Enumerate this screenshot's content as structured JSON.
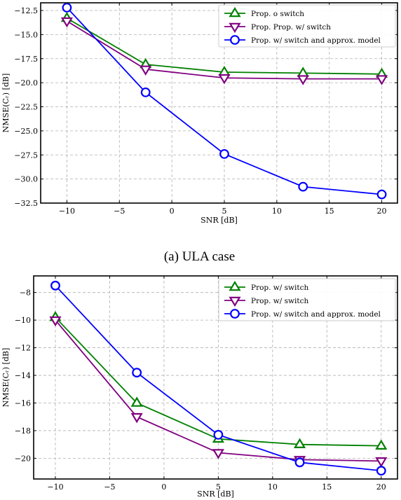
{
  "chart_data": [
    {
      "type": "line",
      "caption": "(a) ULA case",
      "xlabel": "SNR [dB]",
      "ylabel": "NMSE(Cᵣ) [dB]",
      "xlim": [
        -12.5,
        21.5
      ],
      "ylim": [
        -32.5,
        -11.7
      ],
      "xticks": [
        -10,
        -5,
        0,
        5,
        10,
        15,
        20
      ],
      "xtick_labels": [
        "−10",
        "−5",
        "0",
        "5",
        "10",
        "15",
        "20"
      ],
      "yticks": [
        -12.5,
        -15.0,
        -17.5,
        -20.0,
        -22.5,
        -25.0,
        -27.5,
        -30.0,
        -32.5
      ],
      "ytick_labels": [
        "−12.5",
        "−15.0",
        "−17.5",
        "−20.0",
        "−22.5",
        "−25.0",
        "−27.5",
        "−30.0",
        "−32.5"
      ],
      "grid": true,
      "legend_position": "top-right",
      "x": [
        -10,
        -2.5,
        5,
        12.5,
        20
      ],
      "series": [
        {
          "name": "Prop. o switch",
          "color": "#008000",
          "marker": "triangle-up",
          "values": [
            -13.3,
            -18.1,
            -18.9,
            -19.0,
            -19.1
          ]
        },
        {
          "name": "Prop. Prop. w/ switch",
          "color": "#800080",
          "marker": "triangle-down",
          "values": [
            -13.6,
            -18.6,
            -19.5,
            -19.6,
            -19.6
          ]
        },
        {
          "name": "Prop. w/ switch and approx. model",
          "color": "#0000ff",
          "marker": "circle",
          "values": [
            -12.2,
            -21.0,
            -27.4,
            -30.8,
            -31.6
          ]
        }
      ]
    },
    {
      "type": "line",
      "caption": "",
      "xlabel": "SNR [dB]",
      "ylabel": "NMSE(Cᵣ) [dB]",
      "xlim": [
        -12.0,
        21.5
      ],
      "ylim": [
        -21.5,
        -6.8
      ],
      "xticks": [
        -10,
        -5,
        0,
        5,
        10,
        15,
        20
      ],
      "xtick_labels": [
        "−10",
        "−5",
        "0",
        "5",
        "10",
        "15",
        "20"
      ],
      "yticks": [
        -8,
        -10,
        -12,
        -14,
        -16,
        -18,
        -20
      ],
      "ytick_labels": [
        "−8",
        "−10",
        "−12",
        "−14",
        "−16",
        "−18",
        "−20"
      ],
      "grid": true,
      "legend_position": "top-right",
      "x": [
        -10,
        -2.5,
        5,
        12.5,
        20
      ],
      "series": [
        {
          "name": "Prop. w/ switch",
          "color": "#008000",
          "marker": "triangle-up",
          "values": [
            -9.8,
            -16.0,
            -18.6,
            -19.0,
            -19.1
          ]
        },
        {
          "name": "Prop. w/ switch",
          "color": "#800080",
          "marker": "triangle-down",
          "values": [
            -10.0,
            -17.0,
            -19.6,
            -20.1,
            -20.2
          ]
        },
        {
          "name": "Prop. w/ switch and approx. model",
          "color": "#0000ff",
          "marker": "circle",
          "values": [
            -7.5,
            -13.8,
            -18.3,
            -20.3,
            -20.9
          ]
        }
      ]
    }
  ]
}
